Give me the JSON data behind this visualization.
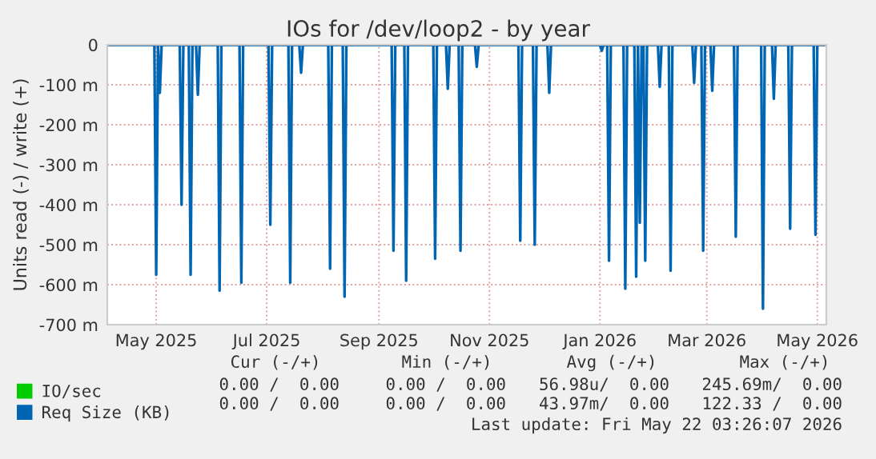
{
  "chart_data": {
    "type": "line",
    "title": "IOs for /dev/loop2 - by year",
    "ylabel": "Units read (-) / write (+)",
    "xlim": [
      "2025-04-04",
      "2026-05-06"
    ],
    "xticks": [
      {
        "value": "2025-05-01",
        "label": "May 2025"
      },
      {
        "value": "2025-07-01",
        "label": "Jul 2025"
      },
      {
        "value": "2025-09-01",
        "label": "Sep 2025"
      },
      {
        "value": "2025-11-01",
        "label": "Nov 2025"
      },
      {
        "value": "2026-01-01",
        "label": "Jan 2026"
      },
      {
        "value": "2026-03-01",
        "label": "Mar 2026"
      },
      {
        "value": "2026-05-01",
        "label": "May 2026"
      }
    ],
    "ylim": [
      -700,
      0
    ],
    "yticks": [
      {
        "value": -700,
        "label": "-700 m"
      },
      {
        "value": -600,
        "label": "-600 m"
      },
      {
        "value": -500,
        "label": "-500 m"
      },
      {
        "value": -400,
        "label": "-400 m"
      },
      {
        "value": -300,
        "label": "-300 m"
      },
      {
        "value": -200,
        "label": "-200 m"
      },
      {
        "value": -100,
        "label": "-100 m"
      },
      {
        "value": 0,
        "label": "0"
      }
    ],
    "grid": true,
    "legend": "bottom",
    "marker": "none",
    "line_style": "solid",
    "series": [
      {
        "name": "IO/sec",
        "color": "#00cc00"
      },
      {
        "name": "Req Size (KB)",
        "color": "#0066b3",
        "x": [
          "2025-04-05",
          "2025-04-30",
          "2025-05-01",
          "2025-05-02",
          "2025-05-03",
          "2025-05-04",
          "2025-05-14",
          "2025-05-15",
          "2025-05-16",
          "2025-05-19",
          "2025-05-20",
          "2025-05-21",
          "2025-05-23",
          "2025-05-24",
          "2025-05-25",
          "2025-06-04",
          "2025-06-05",
          "2025-06-06",
          "2025-06-16",
          "2025-06-17",
          "2025-06-18",
          "2025-07-02",
          "2025-07-03",
          "2025-07-04",
          "2025-07-13",
          "2025-07-14",
          "2025-07-15",
          "2025-07-19",
          "2025-07-20",
          "2025-07-21",
          "2025-08-04",
          "2025-08-05",
          "2025-08-06",
          "2025-08-12",
          "2025-08-13",
          "2025-08-14",
          "2025-09-08",
          "2025-09-09",
          "2025-09-10",
          "2025-09-15",
          "2025-09-16",
          "2025-09-17",
          "2025-10-01",
          "2025-10-02",
          "2025-10-03",
          "2025-10-08",
          "2025-10-09",
          "2025-10-10",
          "2025-10-15",
          "2025-10-16",
          "2025-10-17",
          "2025-10-24",
          "2025-10-25",
          "2025-10-26",
          "2025-11-17",
          "2025-11-18",
          "2025-11-19",
          "2025-11-25",
          "2025-11-26",
          "2025-11-27",
          "2025-12-03",
          "2025-12-04",
          "2025-12-05",
          "2026-01-01",
          "2026-01-02",
          "2026-01-03",
          "2026-01-05",
          "2026-01-06",
          "2026-01-07",
          "2026-01-14",
          "2026-01-15",
          "2026-01-16",
          "2026-01-20",
          "2026-01-21",
          "2026-01-22",
          "2026-01-23",
          "2026-01-24",
          "2026-01-25",
          "2026-01-26",
          "2026-01-27",
          "2026-02-02",
          "2026-02-03",
          "2026-02-04",
          "2026-02-08",
          "2026-02-09",
          "2026-02-10",
          "2026-02-21",
          "2026-02-22",
          "2026-02-23",
          "2026-02-26",
          "2026-02-27",
          "2026-02-28",
          "2026-03-03",
          "2026-03-04",
          "2026-03-05",
          "2026-03-16",
          "2026-03-17",
          "2026-03-18",
          "2026-03-31",
          "2026-04-01",
          "2026-04-02",
          "2026-04-06",
          "2026-04-07",
          "2026-04-08",
          "2026-04-15",
          "2026-04-16",
          "2026-04-17",
          "2026-04-29",
          "2026-04-30",
          "2026-05-01",
          "2026-05-05"
        ],
        "values": [
          0,
          0,
          -575,
          0,
          -120,
          0,
          0,
          -400,
          0,
          0,
          -575,
          0,
          0,
          -125,
          0,
          0,
          -615,
          0,
          0,
          -595,
          0,
          0,
          -450,
          0,
          0,
          -595,
          0,
          0,
          -70,
          0,
          0,
          -560,
          0,
          0,
          -630,
          0,
          0,
          -515,
          0,
          0,
          -590,
          0,
          0,
          -535,
          0,
          0,
          -110,
          0,
          0,
          -515,
          0,
          0,
          -55,
          0,
          0,
          -490,
          0,
          0,
          -500,
          0,
          0,
          -120,
          0,
          0,
          -15,
          0,
          0,
          -540,
          0,
          0,
          -610,
          0,
          0,
          -580,
          0,
          -445,
          0,
          0,
          -540,
          0,
          0,
          -105,
          0,
          0,
          -565,
          0,
          0,
          -95,
          0,
          0,
          -515,
          0,
          0,
          -115,
          0,
          0,
          -480,
          0,
          0,
          -660,
          0,
          0,
          -135,
          0,
          0,
          -460,
          0,
          0,
          -475,
          0,
          0
        ]
      }
    ],
    "annotations": [
      "Cur (-/+)",
      "Min (-/+)",
      "Avg (-/+)",
      "Max (-/+)",
      "0.00 /  0.00",
      "0.00 /  0.00",
      "56.98u/  0.00",
      "245.69m/  0.00",
      "0.00 /  0.00",
      "0.00 /  0.00",
      "43.97m/  0.00",
      "122.33 /  0.00",
      "Last update: Fri May 22 03:26:07 2026"
    ]
  }
}
